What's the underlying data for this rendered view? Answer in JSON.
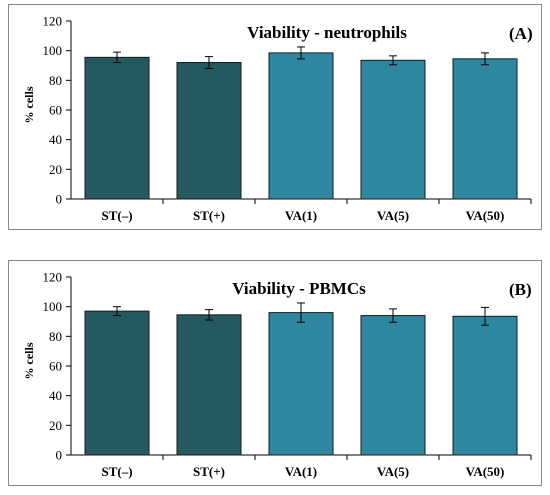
{
  "chart_data": [
    {
      "type": "bar",
      "title": "Viability - neutrophils",
      "panel_label": "(A)",
      "ylabel": "% cells",
      "xlabel": "",
      "ylim": [
        0,
        120
      ],
      "yticks": [
        0,
        20,
        40,
        60,
        80,
        100,
        120
      ],
      "categories": [
        "ST(–)",
        "ST(+)",
        "VA(1)",
        "VA(5)",
        "VA(50)"
      ],
      "values": [
        95.5,
        92,
        98.5,
        93.5,
        94.5
      ],
      "errors": [
        3.5,
        4,
        4,
        3,
        4
      ],
      "bar_colors": [
        "#23595f",
        "#23595f",
        "#2e86a0",
        "#2e86a0",
        "#2e86a0"
      ],
      "grid": false
    },
    {
      "type": "bar",
      "title": "Viability - PBMCs",
      "panel_label": "(B)",
      "ylabel": "% cells",
      "xlabel": "",
      "ylim": [
        0,
        120
      ],
      "yticks": [
        0,
        20,
        40,
        60,
        80,
        100,
        120
      ],
      "categories": [
        "ST(–)",
        "ST(+)",
        "VA(1)",
        "VA(5)",
        "VA(50)"
      ],
      "values": [
        97,
        94.5,
        96,
        94,
        93.5
      ],
      "errors": [
        3,
        3.5,
        6.5,
        4.5,
        6
      ],
      "bar_colors": [
        "#23595f",
        "#23595f",
        "#2e86a0",
        "#2e86a0",
        "#2e86a0"
      ],
      "grid": false
    }
  ]
}
